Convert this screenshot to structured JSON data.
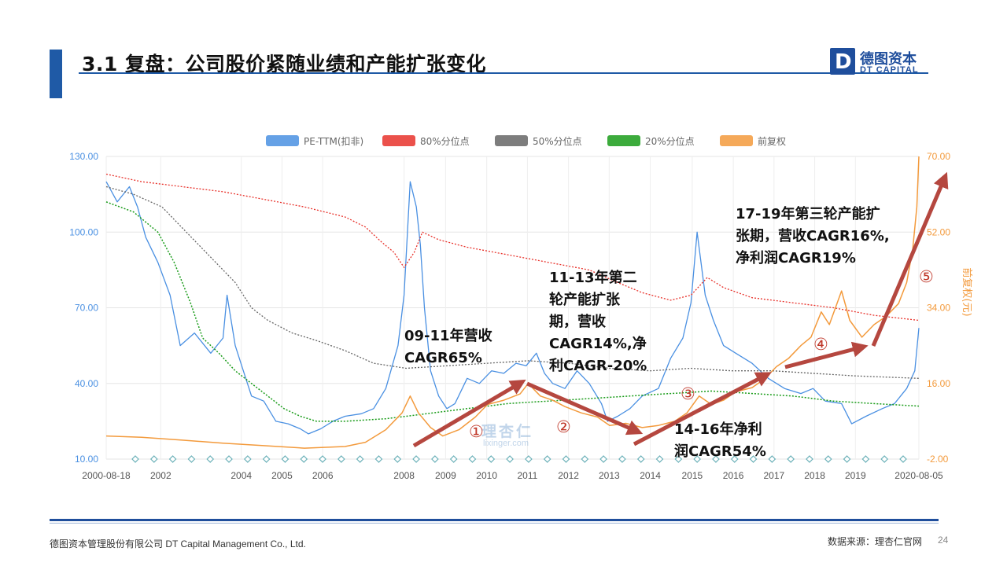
{
  "header": {
    "title": "3.1 复盘：公司股价紧随业绩和产能扩张变化",
    "logo_cn": "德图资本",
    "logo_en": "DT CAPITAL",
    "logo_mark": "D"
  },
  "footer": {
    "company": "德图资本管理股份有限公司  DT Capital Management  Co., Ltd.",
    "source": "数据来源：理杏仁官网",
    "page": "24"
  },
  "watermark": {
    "cn": "理杏仁",
    "en": "lixinger.com"
  },
  "annotations": {
    "a1": [
      "09-11年营收",
      "CAGR65%"
    ],
    "a2": [
      "11-13年第二",
      "轮产能扩张",
      "期，营收",
      "CAGR14%,净",
      "利CAGR-20%"
    ],
    "a3": [
      "14-16年净利",
      "润CAGR54%"
    ],
    "a4": [
      "17-19年第三轮产能扩",
      "张期，营收CAGR16%,",
      "净利润CAGR19%"
    ],
    "markers": [
      "①",
      "②",
      "③",
      "④",
      "⑤"
    ]
  },
  "colors": {
    "pe": "#4a90e2",
    "p80": "#e8322b",
    "p50": "#666666",
    "p20": "#1a9c1a",
    "price": "#f39a3c",
    "arrow": "#b5473f",
    "accent": "#1f4e9c"
  },
  "chart_data": {
    "type": "line",
    "legend": [
      "PE-TTM(扣非)",
      "80%分位点",
      "50%分位点",
      "20%分位点",
      "前复权"
    ],
    "legend_position": "top",
    "x_ticks": [
      "2000-08-18",
      "2002",
      "2004",
      "2005",
      "2006",
      "2008",
      "2009",
      "2010",
      "2011",
      "2012",
      "2013",
      "2014",
      "2015",
      "2016",
      "2017",
      "2018",
      "2019",
      "2020-08-05"
    ],
    "y_left": {
      "ticks": [
        "130.00",
        "100.00",
        "70.00",
        "40.00",
        "10.00"
      ],
      "range": [
        10,
        130
      ]
    },
    "y_right": {
      "ticks": [
        "70.00",
        "52.00",
        "34.00",
        "16.00",
        "-2.00"
      ],
      "range": [
        -2,
        70
      ],
      "label": "前复权(元)"
    },
    "grid": true,
    "series": [
      {
        "name": "PE-TTM(扣非)",
        "axis": "left",
        "points": [
          [
            2000.63,
            120
          ],
          [
            2000.9,
            112
          ],
          [
            2001.2,
            118
          ],
          [
            2001.4,
            110
          ],
          [
            2001.6,
            98
          ],
          [
            2001.9,
            88
          ],
          [
            2002.2,
            75
          ],
          [
            2002.45,
            55
          ],
          [
            2002.8,
            60
          ],
          [
            2003.2,
            52
          ],
          [
            2003.5,
            58
          ],
          [
            2003.6,
            75
          ],
          [
            2003.8,
            55
          ],
          [
            2004.0,
            45
          ],
          [
            2004.2,
            35
          ],
          [
            2004.5,
            33
          ],
          [
            2004.8,
            25
          ],
          [
            2005.1,
            24
          ],
          [
            2005.4,
            22
          ],
          [
            2005.6,
            20
          ],
          [
            2005.9,
            22
          ],
          [
            2006.2,
            25
          ],
          [
            2006.5,
            27
          ],
          [
            2006.9,
            28
          ],
          [
            2007.2,
            30
          ],
          [
            2007.5,
            38
          ],
          [
            2007.8,
            55
          ],
          [
            2007.95,
            75
          ],
          [
            2008.05,
            105
          ],
          [
            2008.1,
            120
          ],
          [
            2008.25,
            110
          ],
          [
            2008.35,
            95
          ],
          [
            2008.45,
            70
          ],
          [
            2008.6,
            45
          ],
          [
            2008.8,
            35
          ],
          [
            2009.0,
            30
          ],
          [
            2009.2,
            32
          ],
          [
            2009.5,
            42
          ],
          [
            2009.8,
            40
          ],
          [
            2010.1,
            45
          ],
          [
            2010.4,
            44
          ],
          [
            2010.7,
            48
          ],
          [
            2010.95,
            47
          ],
          [
            2011.2,
            52
          ],
          [
            2011.4,
            44
          ],
          [
            2011.6,
            40
          ],
          [
            2011.9,
            38
          ],
          [
            2012.2,
            45
          ],
          [
            2012.5,
            40
          ],
          [
            2012.8,
            32
          ],
          [
            2012.95,
            25
          ],
          [
            2013.2,
            27
          ],
          [
            2013.5,
            30
          ],
          [
            2013.8,
            35
          ],
          [
            2014.2,
            38
          ],
          [
            2014.5,
            50
          ],
          [
            2014.8,
            58
          ],
          [
            2015.0,
            72
          ],
          [
            2015.15,
            100
          ],
          [
            2015.35,
            75
          ],
          [
            2015.55,
            65
          ],
          [
            2015.8,
            55
          ],
          [
            2016.1,
            52
          ],
          [
            2016.5,
            48
          ],
          [
            2016.9,
            42
          ],
          [
            2017.3,
            38
          ],
          [
            2017.7,
            36
          ],
          [
            2018.0,
            38
          ],
          [
            2018.3,
            33
          ],
          [
            2018.7,
            32
          ],
          [
            2018.95,
            24
          ],
          [
            2019.3,
            27
          ],
          [
            2019.7,
            30
          ],
          [
            2020.0,
            32
          ],
          [
            2020.3,
            38
          ],
          [
            2020.5,
            45
          ],
          [
            2020.6,
            62
          ]
        ]
      },
      {
        "name": "80%分位点",
        "axis": "left",
        "points": [
          [
            2000.63,
            123
          ],
          [
            2001.5,
            120
          ],
          [
            2002.5,
            118
          ],
          [
            2003.5,
            116
          ],
          [
            2004.5,
            113
          ],
          [
            2005.5,
            110
          ],
          [
            2006.5,
            106
          ],
          [
            2007.0,
            102
          ],
          [
            2007.4,
            96
          ],
          [
            2007.7,
            92
          ],
          [
            2007.95,
            86
          ],
          [
            2008.2,
            92
          ],
          [
            2008.4,
            100
          ],
          [
            2008.8,
            97
          ],
          [
            2009.5,
            94
          ],
          [
            2010.5,
            91
          ],
          [
            2011.5,
            88
          ],
          [
            2012.5,
            85
          ],
          [
            2013.2,
            80
          ],
          [
            2013.8,
            76
          ],
          [
            2014.5,
            73
          ],
          [
            2015.0,
            75
          ],
          [
            2015.4,
            82
          ],
          [
            2015.8,
            78
          ],
          [
            2016.5,
            74
          ],
          [
            2017.5,
            72
          ],
          [
            2018.5,
            70
          ],
          [
            2019.5,
            67
          ],
          [
            2020.6,
            65
          ]
        ]
      },
      {
        "name": "50%分位点",
        "axis": "left",
        "points": [
          [
            2000.63,
            118
          ],
          [
            2001.3,
            115
          ],
          [
            2002.0,
            110
          ],
          [
            2002.6,
            100
          ],
          [
            2003.2,
            90
          ],
          [
            2003.8,
            80
          ],
          [
            2004.2,
            70
          ],
          [
            2004.6,
            65
          ],
          [
            2005.2,
            60
          ],
          [
            2005.8,
            57
          ],
          [
            2006.5,
            53
          ],
          [
            2007.2,
            48
          ],
          [
            2008.0,
            46
          ],
          [
            2009.0,
            47
          ],
          [
            2010.0,
            48
          ],
          [
            2011.0,
            49
          ],
          [
            2012.0,
            48
          ],
          [
            2013.0,
            46
          ],
          [
            2014.0,
            45
          ],
          [
            2015.0,
            46
          ],
          [
            2016.0,
            45
          ],
          [
            2017.0,
            45
          ],
          [
            2018.0,
            44
          ],
          [
            2019.0,
            43
          ],
          [
            2020.6,
            42
          ]
        ]
      },
      {
        "name": "20%分位点",
        "axis": "left",
        "points": [
          [
            2000.63,
            112
          ],
          [
            2001.3,
            108
          ],
          [
            2001.9,
            100
          ],
          [
            2002.3,
            88
          ],
          [
            2002.7,
            72
          ],
          [
            2003.0,
            58
          ],
          [
            2003.4,
            52
          ],
          [
            2003.8,
            45
          ],
          [
            2004.2,
            40
          ],
          [
            2004.6,
            35
          ],
          [
            2005.0,
            30
          ],
          [
            2005.4,
            27
          ],
          [
            2005.8,
            25
          ],
          [
            2006.5,
            25
          ],
          [
            2007.5,
            26
          ],
          [
            2008.5,
            28
          ],
          [
            2009.5,
            30
          ],
          [
            2010.5,
            32
          ],
          [
            2011.5,
            33
          ],
          [
            2012.5,
            34
          ],
          [
            2013.5,
            35
          ],
          [
            2014.5,
            36
          ],
          [
            2015.5,
            37
          ],
          [
            2016.5,
            36
          ],
          [
            2017.5,
            35
          ],
          [
            2018.5,
            33
          ],
          [
            2019.5,
            32
          ],
          [
            2020.6,
            31
          ]
        ]
      },
      {
        "name": "前复权",
        "axis": "right",
        "points": [
          [
            2000.63,
            3.5
          ],
          [
            2001.5,
            3.2
          ],
          [
            2002.5,
            2.5
          ],
          [
            2003.5,
            1.8
          ],
          [
            2004.5,
            1.2
          ],
          [
            2005.5,
            0.6
          ],
          [
            2006.5,
            1.0
          ],
          [
            2007.0,
            2.0
          ],
          [
            2007.5,
            5.0
          ],
          [
            2007.9,
            9.0
          ],
          [
            2008.1,
            13.0
          ],
          [
            2008.3,
            9.0
          ],
          [
            2008.6,
            5.5
          ],
          [
            2008.9,
            3.5
          ],
          [
            2009.3,
            5.0
          ],
          [
            2009.7,
            8.0
          ],
          [
            2010.0,
            11.0
          ],
          [
            2010.4,
            12.0
          ],
          [
            2010.8,
            13.5
          ],
          [
            2011.0,
            16.0
          ],
          [
            2011.3,
            13.0
          ],
          [
            2011.6,
            12.0
          ],
          [
            2011.9,
            10.5
          ],
          [
            2012.3,
            9.0
          ],
          [
            2012.7,
            8.0
          ],
          [
            2013.0,
            6.0
          ],
          [
            2013.4,
            6.5
          ],
          [
            2013.8,
            5.5
          ],
          [
            2014.2,
            6.0
          ],
          [
            2014.6,
            7.0
          ],
          [
            2014.9,
            9.0
          ],
          [
            2015.2,
            13.0
          ],
          [
            2015.5,
            11.0
          ],
          [
            2015.8,
            12.0
          ],
          [
            2016.1,
            14.0
          ],
          [
            2016.5,
            15.0
          ],
          [
            2016.8,
            17.0
          ],
          [
            2017.1,
            20.0
          ],
          [
            2017.4,
            22.0
          ],
          [
            2017.7,
            25.0
          ],
          [
            2017.95,
            27.0
          ],
          [
            2018.2,
            33.0
          ],
          [
            2018.4,
            30.0
          ],
          [
            2018.7,
            38.0
          ],
          [
            2018.9,
            31.0
          ],
          [
            2019.2,
            27.0
          ],
          [
            2019.5,
            30.0
          ],
          [
            2019.8,
            32.0
          ],
          [
            2020.1,
            35.0
          ],
          [
            2020.3,
            40.0
          ],
          [
            2020.45,
            48.0
          ],
          [
            2020.55,
            58.0
          ],
          [
            2020.6,
            70.0
          ]
        ]
      }
    ],
    "marker_row_count": 42
  }
}
